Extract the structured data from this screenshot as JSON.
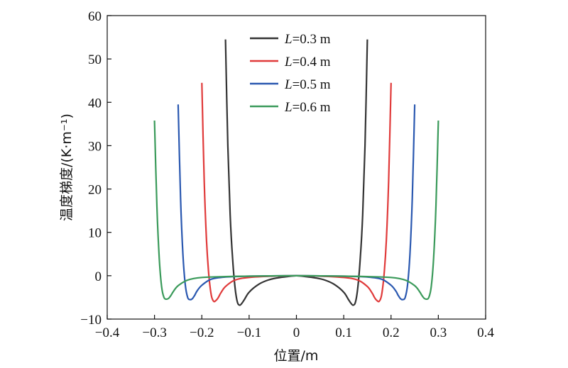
{
  "chart_data": {
    "type": "line",
    "xlabel": "位置/m",
    "ylabel": "温度梯度/(K·m⁻¹)",
    "xlim": [
      -0.4,
      0.4
    ],
    "ylim": [
      -10,
      60
    ],
    "xticks": [
      -0.4,
      -0.3,
      -0.2,
      -0.1,
      0,
      0.1,
      0.2,
      0.3,
      0.4
    ],
    "yticks": [
      -10,
      0,
      10,
      20,
      30,
      40,
      50,
      60
    ],
    "xtick_labels": [
      "−0.4",
      "−0.3",
      "−0.2",
      "−0.1",
      "0",
      "0.1",
      "0.2",
      "0.3",
      "0.4"
    ],
    "ytick_labels": [
      "−10",
      "0",
      "10",
      "20",
      "30",
      "40",
      "50",
      "60"
    ],
    "grid": false,
    "legend_position": "top-center",
    "series": [
      {
        "name": "L=0.3 m",
        "legend_italic": "L",
        "legend_rest": "=0.3 m",
        "color": "#333333",
        "x": [
          -0.15,
          -0.145,
          -0.14,
          -0.135,
          -0.13,
          -0.125,
          -0.12,
          -0.115,
          -0.11,
          -0.1,
          -0.08,
          -0.06,
          -0.04,
          -0.02,
          0,
          0.02,
          0.04,
          0.06,
          0.08,
          0.1,
          0.11,
          0.115,
          0.12,
          0.125,
          0.13,
          0.135,
          0.14,
          0.145,
          0.15
        ],
        "y": [
          54.5,
          30,
          14,
          4,
          -2.5,
          -6,
          -6.8,
          -6.3,
          -5.5,
          -3.8,
          -2,
          -1,
          -0.5,
          -0.2,
          0,
          -0.2,
          -0.5,
          -1,
          -2,
          -3.8,
          -5.5,
          -6.3,
          -6.8,
          -6,
          -2.5,
          4,
          14,
          30,
          54.5
        ]
      },
      {
        "name": "L=0.4 m",
        "legend_italic": "L",
        "legend_rest": "=0.4 m",
        "color": "#e03a3a",
        "x": [
          -0.2,
          -0.195,
          -0.19,
          -0.185,
          -0.18,
          -0.175,
          -0.17,
          -0.165,
          -0.16,
          -0.15,
          -0.13,
          -0.1,
          -0.05,
          0,
          0.05,
          0.1,
          0.13,
          0.15,
          0.16,
          0.165,
          0.17,
          0.175,
          0.18,
          0.185,
          0.19,
          0.195,
          0.2
        ],
        "y": [
          44.5,
          22,
          8,
          0,
          -4.5,
          -5.9,
          -5.7,
          -5,
          -4,
          -2.5,
          -1,
          -0.4,
          -0.1,
          0,
          -0.1,
          -0.4,
          -1,
          -2.5,
          -4,
          -5,
          -5.7,
          -5.9,
          -4.5,
          0,
          8,
          22,
          44.5
        ]
      },
      {
        "name": "L=0.5 m",
        "legend_italic": "L",
        "legend_rest": "=0.5 m",
        "color": "#2a58b0",
        "x": [
          -0.25,
          -0.245,
          -0.24,
          -0.235,
          -0.23,
          -0.225,
          -0.22,
          -0.215,
          -0.21,
          -0.2,
          -0.18,
          -0.15,
          -0.1,
          0,
          0.1,
          0.15,
          0.18,
          0.2,
          0.21,
          0.215,
          0.22,
          0.225,
          0.23,
          0.235,
          0.24,
          0.245,
          0.25
        ],
        "y": [
          39.5,
          18,
          5,
          -2,
          -5,
          -5.5,
          -5.3,
          -4.5,
          -3.5,
          -2.2,
          -0.8,
          -0.3,
          -0.1,
          0,
          -0.1,
          -0.3,
          -0.8,
          -2.2,
          -3.5,
          -4.5,
          -5.3,
          -5.5,
          -5,
          -2,
          5,
          18,
          39.5
        ]
      },
      {
        "name": "L=0.6 m",
        "legend_italic": "L",
        "legend_rest": "=0.6 m",
        "color": "#3a9a5a",
        "x": [
          -0.3,
          -0.295,
          -0.29,
          -0.285,
          -0.28,
          -0.275,
          -0.27,
          -0.265,
          -0.26,
          -0.25,
          -0.23,
          -0.2,
          -0.15,
          -0.1,
          0,
          0.1,
          0.15,
          0.2,
          0.23,
          0.25,
          0.26,
          0.265,
          0.27,
          0.275,
          0.28,
          0.285,
          0.29,
          0.295,
          0.3
        ],
        "y": [
          35.8,
          16,
          4,
          -2.5,
          -5,
          -5.4,
          -5.2,
          -4.5,
          -3.6,
          -2.3,
          -1,
          -0.4,
          -0.2,
          -0.1,
          0,
          -0.1,
          -0.2,
          -0.4,
          -1,
          -2.3,
          -3.6,
          -4.5,
          -5.2,
          -5.4,
          -5,
          -2.5,
          4,
          16,
          35.8
        ]
      }
    ]
  }
}
